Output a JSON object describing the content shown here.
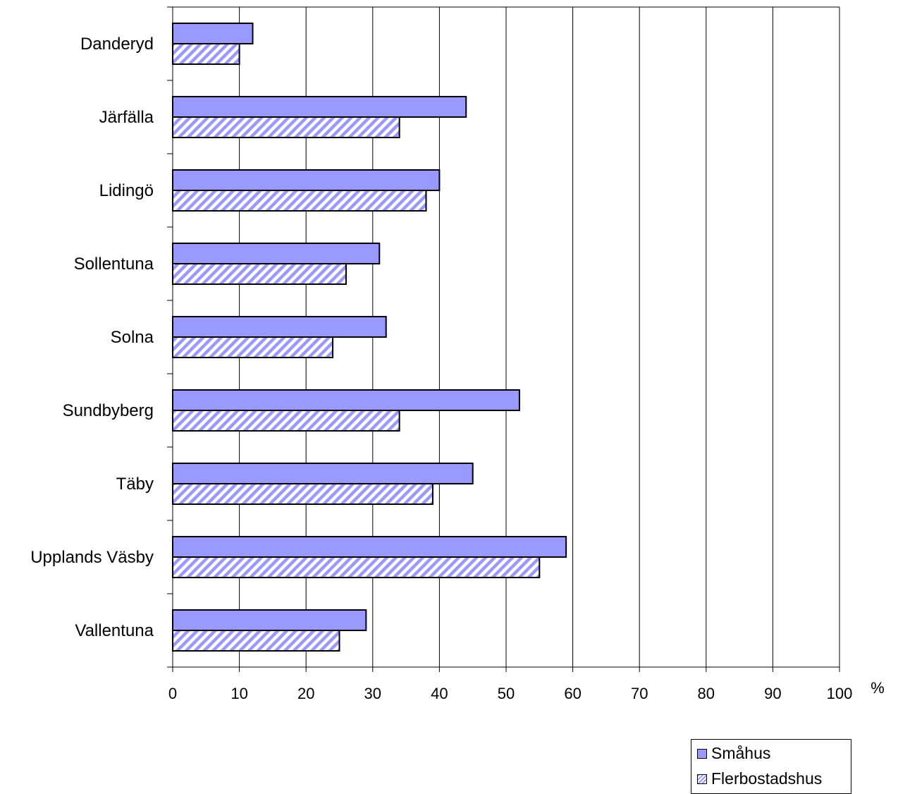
{
  "chart_data": {
    "type": "bar",
    "orientation": "horizontal",
    "categories": [
      "Danderyd",
      "Järfälla",
      "Lidingö",
      "Sollentuna",
      "Solna",
      "Sundbyberg",
      "Täby",
      "Upplands Väsby",
      "Vallentuna"
    ],
    "series": [
      {
        "name": "Småhus",
        "values": [
          12,
          44,
          40,
          31,
          32,
          52,
          45,
          59,
          29
        ],
        "color": "#9999ff",
        "pattern": "solid"
      },
      {
        "name": "Flerbostadshus",
        "values": [
          10,
          34,
          38,
          26,
          24,
          34,
          39,
          55,
          25
        ],
        "color": "#9999ff",
        "pattern": "diagonal-hatch"
      }
    ],
    "x_ticks": [
      "0",
      "10",
      "20",
      "30",
      "40",
      "50",
      "60",
      "70",
      "80",
      "90",
      "100"
    ],
    "xlim": [
      0,
      100
    ],
    "x_unit": "%",
    "grid": "vertical",
    "legend_position": "bottom-right"
  }
}
